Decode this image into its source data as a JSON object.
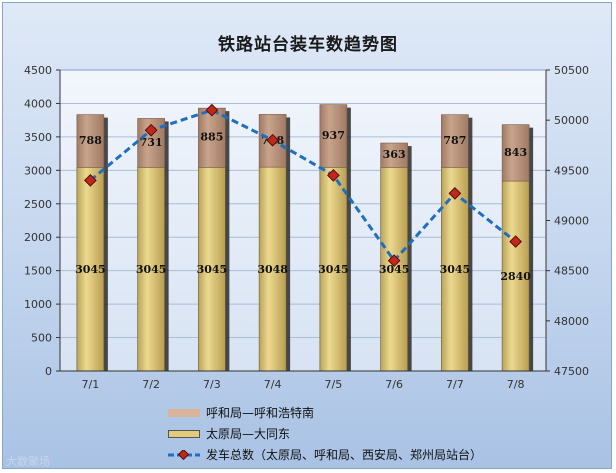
{
  "chart_data": {
    "type": "bar",
    "title": "铁路站台装车数趋势图",
    "categories": [
      "7/1",
      "7/2",
      "7/3",
      "7/4",
      "7/5",
      "7/6",
      "7/7",
      "7/8"
    ],
    "series": [
      {
        "name": "呼和局—呼和浩特南",
        "values": [
          788,
          731,
          885,
          788,
          937,
          363,
          787,
          843
        ],
        "color": "#b28972",
        "axis": "left",
        "kind": "bar"
      },
      {
        "name": "太原局—大同东",
        "values": [
          3045,
          3045,
          3045,
          3048,
          3045,
          3045,
          3045,
          2840
        ],
        "color": "#d9c27a",
        "axis": "left",
        "kind": "bar"
      },
      {
        "name": "发车总数（太原局、呼和局、西安局、郑州局站台）",
        "values": [
          49400,
          49900,
          50100,
          49800,
          49450,
          48600,
          49270,
          48790
        ],
        "color": "#1f6fc1",
        "axis": "right",
        "kind": "line"
      }
    ],
    "bar_labels_top": [
      "788",
      "731",
      "885",
      "788",
      "937",
      "363",
      "787",
      "843"
    ],
    "bar_labels_bottom": [
      "3045",
      "3045",
      "3045",
      "3048",
      "3045",
      "3045",
      "3045",
      "2840"
    ],
    "ylim_left": [
      0,
      4500
    ],
    "yticks_left": [
      "0",
      "500",
      "1000",
      "1500",
      "2000",
      "2500",
      "3000",
      "3500",
      "4000",
      "4500"
    ],
    "ylim_right": [
      47500,
      50500
    ],
    "yticks_right": [
      "47500",
      "48000",
      "48500",
      "49000",
      "49500",
      "50000",
      "50500"
    ],
    "grid": true,
    "legend_position": "bottom"
  },
  "watermark": "大数聚场"
}
